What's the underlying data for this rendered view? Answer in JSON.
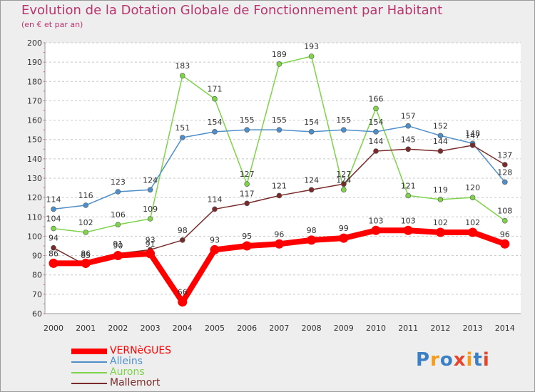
{
  "header": {
    "title": "Evolution de la Dotation Globale de Fonctionnement par Habitant",
    "subtitle": "(en € et par an)"
  },
  "logo": {
    "text": "Proxiti",
    "colors": [
      "#3b7fc4",
      "#f39a1f",
      "#3b7fc4",
      "#e8432c",
      "#f39a1f",
      "#3b7fc4",
      "#e8432c"
    ]
  },
  "chart_data": {
    "type": "line",
    "title": "Evolution de la Dotation Globale de Fonctionnement par Habitant",
    "subtitle": "(en € et par an)",
    "x": [
      "2000",
      "2001",
      "2002",
      "2003",
      "2004",
      "2005",
      "2006",
      "2007",
      "2008",
      "2009",
      "2010",
      "2011",
      "2012",
      "2013",
      "2014"
    ],
    "ylim": [
      60,
      200
    ],
    "yticks": [
      60,
      70,
      80,
      90,
      100,
      110,
      120,
      130,
      140,
      150,
      160,
      170,
      180,
      190,
      200
    ],
    "grid": "horizontal-dashed",
    "legend": "bottom-left",
    "series": [
      {
        "name": "Alleins",
        "color": "#4f8fc9",
        "values": [
          114,
          116,
          123,
          124,
          151,
          154,
          155,
          155,
          154,
          155,
          154,
          157,
          152,
          148,
          128
        ]
      },
      {
        "name": "Aurons",
        "color": "#7ed34a",
        "values": [
          104,
          102,
          106,
          109,
          183,
          171,
          127,
          189,
          193,
          124,
          166,
          121,
          119,
          120,
          108
        ]
      },
      {
        "name": "Mallemort",
        "color": "#7a2a2a",
        "values": [
          94,
          85,
          91,
          93,
          98,
          114,
          117,
          121,
          124,
          127,
          144,
          145,
          144,
          147,
          137
        ]
      },
      {
        "name": "VERNèGUES",
        "color": "#ff0000",
        "values": [
          86,
          86,
          90,
          91,
          66,
          93,
          95,
          96,
          98,
          99,
          103,
          103,
          102,
          102,
          96
        ]
      }
    ],
    "data_labels": {
      "Alleins": [
        "114",
        "116",
        "123",
        "124",
        "151",
        "154",
        "155",
        "155",
        "154",
        "155",
        "154",
        "157",
        "152",
        "148",
        "128"
      ],
      "Aurons": [
        "104",
        "102",
        "106",
        "109",
        "183",
        "171",
        "127",
        "189",
        "193",
        "124",
        "166",
        "121",
        "119",
        "120",
        "108"
      ],
      "Mallemort": [
        "94",
        "85",
        "91",
        "93",
        "98",
        "114",
        "117",
        "121",
        "124",
        "127",
        "144",
        "145",
        "144",
        "147",
        "137"
      ],
      "VERNèGUES": [
        "86",
        "86",
        "90",
        "91",
        "66",
        "93",
        "95",
        "96",
        "98",
        "99",
        "103",
        "103",
        "102",
        "102",
        "96"
      ]
    }
  }
}
